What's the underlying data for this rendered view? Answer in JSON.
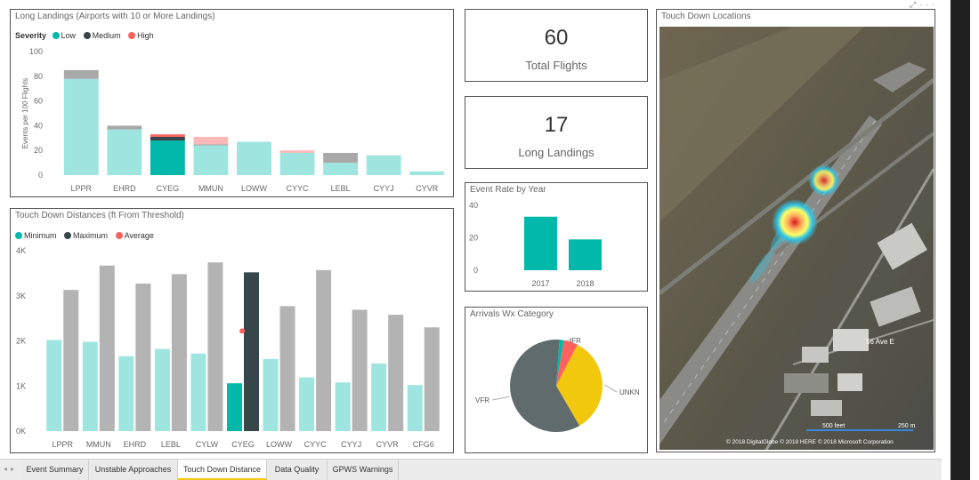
{
  "long_landings": {
    "title": "Long Landings (Airports with 10 or More Landings)",
    "legend_title": "Severity",
    "legend": [
      {
        "label": "Low",
        "color": "#01b8aa"
      },
      {
        "label": "Medium",
        "color": "#374649"
      },
      {
        "label": "High",
        "color": "#fd625e"
      }
    ]
  },
  "touch_down_distances": {
    "title": "Touch Down Distances (ft From Threshold)",
    "legend": [
      {
        "label": "Minimum",
        "color": "#01b8aa"
      },
      {
        "label": "Maximum",
        "color": "#374649"
      },
      {
        "label": "Average",
        "color": "#fd625e"
      }
    ]
  },
  "cards": {
    "total_flights": {
      "value": "60",
      "label": "Total Flights"
    },
    "long_landings": {
      "value": "17",
      "label": "Long Landings"
    }
  },
  "event_rate": {
    "title": "Event Rate by Year"
  },
  "arrivals_wx": {
    "title": "Arrivals Wx Category"
  },
  "map": {
    "title": "Touch Down Locations",
    "street_label": "56 Ave E",
    "scale_left": "500 feet",
    "scale_right": "250 m",
    "copyright": "© 2018 DigitalGlobe © 2018 HERE © 2018 Microsoft Corporation"
  },
  "tabs": [
    {
      "label": "Event Summary",
      "active": false
    },
    {
      "label": "Unstable Approaches",
      "active": false
    },
    {
      "label": "Touch Down Distance",
      "active": true
    },
    {
      "label": "Data Quality",
      "active": false
    },
    {
      "label": "GPWS Warnings",
      "active": false
    }
  ],
  "icons": {
    "nav": "nav-arrows-icon",
    "focus": "focus-mode-icon",
    "more": "more-options-icon"
  },
  "chart_data": [
    {
      "type": "bar",
      "stacked": true,
      "title": "Long Landings (Airports with 10 or More Landings)",
      "ylabel": "Events per 100 Flights",
      "ylim": [
        0,
        100
      ],
      "yticks": [
        0,
        20,
        40,
        60,
        80,
        100
      ],
      "categories": [
        "LPPR",
        "EHRD",
        "CYEG",
        "MMUN",
        "LOWW",
        "CYYC",
        "LEBL",
        "CYYJ",
        "CYVR"
      ],
      "series": [
        {
          "name": "Low",
          "color": "#01b8aa",
          "values": [
            78,
            37,
            28,
            24,
            27,
            18,
            10,
            16,
            3
          ]
        },
        {
          "name": "Medium",
          "color": "#374649",
          "values": [
            7,
            3,
            3,
            1,
            0,
            0,
            8,
            0,
            0
          ]
        },
        {
          "name": "High",
          "color": "#fd625e",
          "values": [
            0,
            0,
            2,
            6,
            0,
            2,
            0,
            0,
            0
          ]
        }
      ],
      "highlighted_category": "CYEG",
      "legend": "top-left",
      "grid": false
    },
    {
      "type": "bar",
      "title": "Touch Down Distances (ft From Threshold)",
      "ylim": [
        0,
        4000
      ],
      "yticks": [
        0,
        1000,
        2000,
        3000,
        4000
      ],
      "ytick_labels": [
        "0K",
        "1K",
        "2K",
        "3K",
        "4K"
      ],
      "categories": [
        "LPPR",
        "MMUN",
        "EHRD",
        "LEBL",
        "CYLW",
        "CYEG",
        "LOWW",
        "CYYC",
        "CYYJ",
        "CYVR",
        "CFG6"
      ],
      "series": [
        {
          "name": "Minimum",
          "color": "#01b8aa",
          "values": [
            2020,
            1980,
            1660,
            1820,
            1720,
            1060,
            1600,
            1190,
            1080,
            1500,
            1020
          ]
        },
        {
          "name": "Maximum",
          "color": "#374649",
          "values": [
            3130,
            3670,
            3270,
            3480,
            3740,
            3520,
            2770,
            3570,
            2690,
            2580,
            2300
          ]
        }
      ],
      "average": {
        "name": "Average",
        "category": "CYEG",
        "value": 2220
      },
      "highlighted_category": "CYEG",
      "legend": "top-left",
      "grid": false
    },
    {
      "type": "bar",
      "title": "Event Rate by Year",
      "categories": [
        "2017",
        "2018"
      ],
      "values": [
        33,
        19
      ],
      "ylim": [
        0,
        40
      ],
      "yticks": [
        0,
        20,
        40
      ],
      "color": "#01b8aa"
    },
    {
      "type": "pie",
      "title": "Arrivals Wx Category",
      "slices": [
        {
          "label": "IFR",
          "value": 1.5,
          "color": "#01b8aa"
        },
        {
          "label": "IFR",
          "value": 5,
          "color": "#fd625e"
        },
        {
          "label": "UNKN",
          "value": 34,
          "color": "#f2c80f"
        },
        {
          "label": "VFR",
          "value": 59.5,
          "color": "#5f6b6d"
        }
      ]
    }
  ]
}
